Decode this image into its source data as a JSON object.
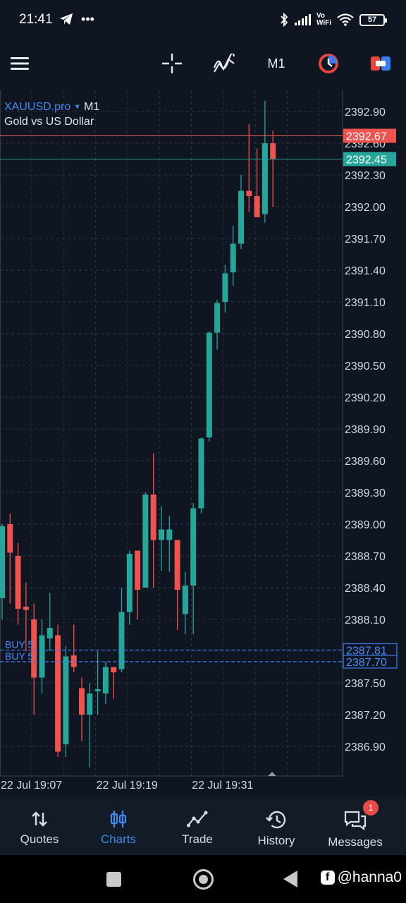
{
  "status_bar": {
    "time": "21:41",
    "left_icons": [
      "telegram-icon",
      "more-dots-icon"
    ],
    "right_icons": [
      "bluetooth-icon",
      "signal-icon",
      "volte-wifi-icon",
      "wifi-icon",
      "battery-icon"
    ],
    "volte_top": "Vo",
    "volte_bottom": "WiFi",
    "battery": "57"
  },
  "toolbar": {
    "timeframe": "M1",
    "icons": [
      "menu-icon",
      "crosshair-icon",
      "indicators-icon",
      "timeframe",
      "one-click-trading-icon",
      "trade-toggle-icon"
    ],
    "colors": {
      "one_click": "#e8453c",
      "trade_toggle": "#e8453c"
    }
  },
  "chart": {
    "symbol": "XAUUSD.pro",
    "timeframe": "M1",
    "description": "Gold vs US Dollar",
    "ask_price": "2392.67",
    "bid_price": "2392.45",
    "colors": {
      "bull": "#26a69a",
      "bear": "#ef5350",
      "grid": "#2a3340",
      "order_line": "#3d7cf0"
    },
    "orders": [
      {
        "label": "BUY 5",
        "price": 2387.81,
        "price_label": "2387.81"
      },
      {
        "label": "BUY 5",
        "price": 2387.7,
        "price_label": "2387.70"
      }
    ]
  },
  "chart_data": {
    "type": "candlestick",
    "symbol": "XAUUSD.pro",
    "title": "Gold vs US Dollar",
    "timeframe": "M1",
    "ylim": [
      2386.7,
      2393.2
    ],
    "y_ticks": [
      "2392.90",
      "2392.60",
      "2392.30",
      "2392.00",
      "2391.70",
      "2391.40",
      "2391.10",
      "2390.80",
      "2390.50",
      "2390.20",
      "2389.90",
      "2389.60",
      "2389.30",
      "2389.00",
      "2388.70",
      "2388.40",
      "2388.10",
      "2387.50",
      "2387.20",
      "2386.90"
    ],
    "x_labels": [
      {
        "label": "22 Jul 19:07",
        "index": 0
      },
      {
        "label": "22 Jul 19:19",
        "index": 12
      },
      {
        "label": "22 Jul 19:31",
        "index": 24
      }
    ],
    "candles": [
      {
        "o": 2388.3,
        "h": 2389.0,
        "l": 2388.1,
        "c": 2388.98
      },
      {
        "o": 2389.0,
        "h": 2389.1,
        "l": 2388.25,
        "c": 2388.73
      },
      {
        "o": 2388.7,
        "h": 2388.82,
        "l": 2388.05,
        "c": 2388.2
      },
      {
        "o": 2388.22,
        "h": 2388.45,
        "l": 2387.8,
        "c": 2388.19
      },
      {
        "o": 2388.1,
        "h": 2388.25,
        "l": 2387.2,
        "c": 2387.55
      },
      {
        "o": 2387.55,
        "h": 2388.1,
        "l": 2387.4,
        "c": 2387.95
      },
      {
        "o": 2387.92,
        "h": 2388.35,
        "l": 2387.8,
        "c": 2388.02
      },
      {
        "o": 2387.95,
        "h": 2388.05,
        "l": 2386.8,
        "c": 2386.85
      },
      {
        "o": 2386.92,
        "h": 2387.85,
        "l": 2386.8,
        "c": 2387.75
      },
      {
        "o": 2387.76,
        "h": 2388.05,
        "l": 2387.6,
        "c": 2387.65
      },
      {
        "o": 2387.45,
        "h": 2387.55,
        "l": 2386.95,
        "c": 2387.2
      },
      {
        "o": 2387.2,
        "h": 2387.5,
        "l": 2386.7,
        "c": 2387.4
      },
      {
        "o": 2387.42,
        "h": 2387.8,
        "l": 2387.2,
        "c": 2387.44
      },
      {
        "o": 2387.4,
        "h": 2387.7,
        "l": 2387.3,
        "c": 2387.65
      },
      {
        "o": 2387.65,
        "h": 2387.65,
        "l": 2387.35,
        "c": 2387.6
      },
      {
        "o": 2387.63,
        "h": 2388.4,
        "l": 2387.6,
        "c": 2388.17
      },
      {
        "o": 2388.17,
        "h": 2388.75,
        "l": 2388.05,
        "c": 2388.72
      },
      {
        "o": 2388.75,
        "h": 2388.75,
        "l": 2388.1,
        "c": 2388.38
      },
      {
        "o": 2388.4,
        "h": 2389.3,
        "l": 2388.4,
        "c": 2389.28
      },
      {
        "o": 2389.28,
        "h": 2389.67,
        "l": 2388.4,
        "c": 2388.85
      },
      {
        "o": 2388.85,
        "h": 2389.17,
        "l": 2388.56,
        "c": 2388.95
      },
      {
        "o": 2388.85,
        "h": 2389.08,
        "l": 2388.55,
        "c": 2388.95
      },
      {
        "o": 2388.85,
        "h": 2388.85,
        "l": 2388.0,
        "c": 2388.38
      },
      {
        "o": 2388.15,
        "h": 2388.55,
        "l": 2387.96,
        "c": 2388.42
      },
      {
        "o": 2388.42,
        "h": 2389.2,
        "l": 2387.96,
        "c": 2389.15
      },
      {
        "o": 2389.15,
        "h": 2389.82,
        "l": 2389.1,
        "c": 2389.81
      },
      {
        "o": 2389.82,
        "h": 2390.82,
        "l": 2389.78,
        "c": 2390.81
      },
      {
        "o": 2390.81,
        "h": 2391.12,
        "l": 2390.65,
        "c": 2391.09
      },
      {
        "o": 2391.1,
        "h": 2391.45,
        "l": 2391.0,
        "c": 2391.37
      },
      {
        "o": 2391.38,
        "h": 2391.82,
        "l": 2391.25,
        "c": 2391.65
      },
      {
        "o": 2391.65,
        "h": 2392.3,
        "l": 2391.6,
        "c": 2392.15
      },
      {
        "o": 2392.15,
        "h": 2392.78,
        "l": 2391.95,
        "c": 2392.1
      },
      {
        "o": 2392.1,
        "h": 2392.55,
        "l": 2391.9,
        "c": 2391.9
      },
      {
        "o": 2391.93,
        "h": 2393.0,
        "l": 2391.85,
        "c": 2392.6
      },
      {
        "o": 2392.6,
        "h": 2392.72,
        "l": 2392.0,
        "c": 2392.45
      }
    ]
  },
  "bottom_nav": {
    "items": [
      {
        "label": "Quotes",
        "icon": "quotes-icon"
      },
      {
        "label": "Charts",
        "icon": "charts-icon",
        "active": true
      },
      {
        "label": "Trade",
        "icon": "trade-icon"
      },
      {
        "label": "History",
        "icon": "history-icon"
      },
      {
        "label": "Messages",
        "icon": "messages-icon",
        "badge": "1"
      }
    ],
    "active_color": "#3d8cf0"
  },
  "system_nav": {
    "buttons": [
      "recents-button",
      "home-button",
      "back-button"
    ],
    "watermark": "@hanna0"
  }
}
